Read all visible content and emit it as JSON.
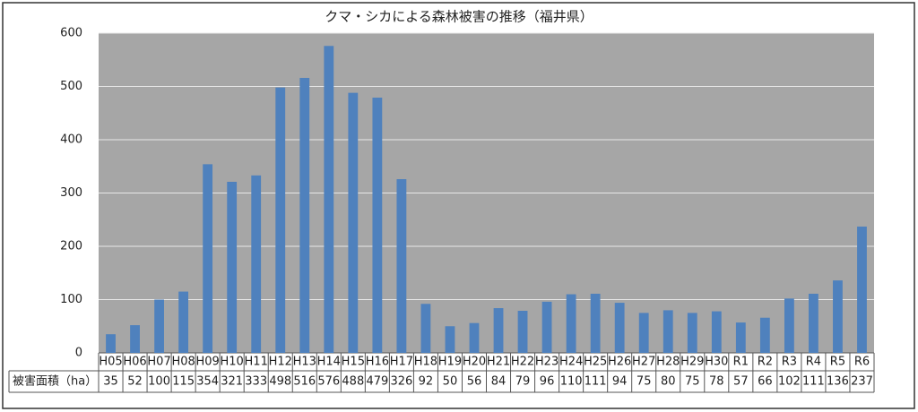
{
  "chart_data": {
    "type": "bar",
    "title": "クマ・シカによる森林被害の推移（福井県）",
    "categories": [
      "H05",
      "H06",
      "H07",
      "H08",
      "H09",
      "H10",
      "H11",
      "H12",
      "H13",
      "H14",
      "H15",
      "H16",
      "H17",
      "H18",
      "H19",
      "H20",
      "H21",
      "H22",
      "H23",
      "H24",
      "H25",
      "H26",
      "H27",
      "H28",
      "H29",
      "H30",
      "R1",
      "R2",
      "R3",
      "R4",
      "R5",
      "R6"
    ],
    "series": [
      {
        "name": "被害面積（ha）",
        "color": "#4f81bd",
        "values": [
          35,
          52,
          100,
          115,
          354,
          321,
          333,
          498,
          516,
          576,
          488,
          479,
          326,
          92,
          50,
          56,
          84,
          79,
          96,
          110,
          111,
          94,
          75,
          80,
          75,
          78,
          57,
          66,
          102,
          111,
          136,
          237
        ]
      }
    ],
    "ylim": [
      0,
      600
    ],
    "yticks": [
      0,
      100,
      200,
      300,
      400,
      500,
      600
    ],
    "grid": true
  }
}
